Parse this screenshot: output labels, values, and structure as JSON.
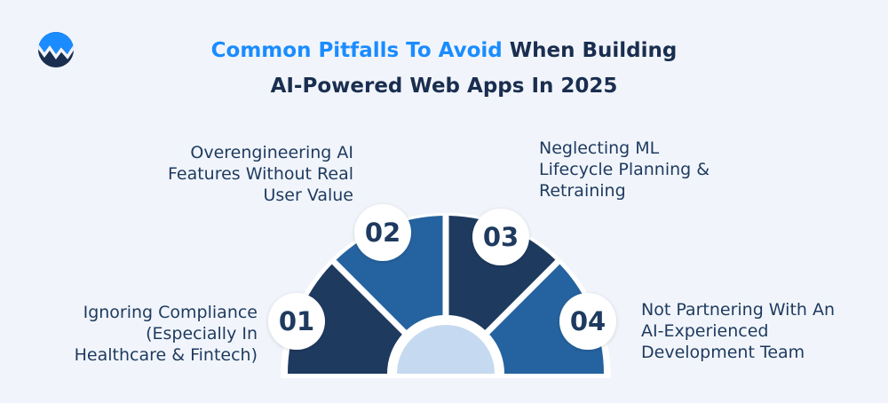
{
  "header": {
    "title_accent": "Common Pitfalls To Avoid",
    "title_rest": " When Building",
    "title_line2": "AI-Powered Web Apps In 2025"
  },
  "logo": {
    "icon": "wave-w-logo",
    "colors": [
      "#1a8cff",
      "#1a2e4f"
    ]
  },
  "items": [
    {
      "number": "01",
      "lines": [
        "Ignoring Compliance",
        "(Especially In",
        "Healthcare & Fintech)"
      ]
    },
    {
      "number": "02",
      "lines": [
        "Overengineering AI",
        "Features Without Real",
        "User Value"
      ]
    },
    {
      "number": "03",
      "lines": [
        "Neglecting ML",
        "Lifecycle Planning &",
        "Retraining"
      ]
    },
    {
      "number": "04",
      "lines": [
        "Not Partnering With An",
        "AI-Experienced",
        "Development Team"
      ]
    }
  ],
  "colors": {
    "dark": "#1e3a5f",
    "blue": "#2563a0",
    "center": "#c5daf0",
    "accent": "#1a8cff"
  }
}
